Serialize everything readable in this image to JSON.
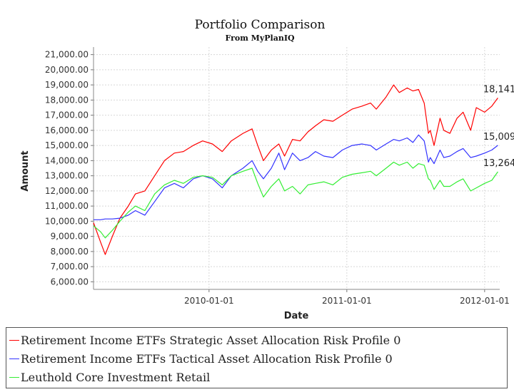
{
  "chart_data": {
    "type": "line",
    "title": "Portfolio Comparison",
    "subtitle": "From MyPlanIQ",
    "xlabel": "Date",
    "ylabel": "Amount",
    "xlim": [
      "2009-03-01",
      "2012-02-10"
    ],
    "ylim": [
      5500,
      21500
    ],
    "y_ticks": [
      6000,
      7000,
      8000,
      9000,
      10000,
      11000,
      12000,
      13000,
      14000,
      15000,
      16000,
      17000,
      18000,
      19000,
      20000,
      21000
    ],
    "y_tick_labels": [
      "6,000.00",
      "7,000.00",
      "8,000.00",
      "9,000.00",
      "10,000.00",
      "11,000.00",
      "12,000.00",
      "13,000.00",
      "14,000.00",
      "15,000.00",
      "16,000.00",
      "17,000.00",
      "18,000.00",
      "19,000.00",
      "20,000.00",
      "21,000.00"
    ],
    "x_ticks": [
      "2010-01-01",
      "2011-01-01",
      "2012-01-01"
    ],
    "x_tick_labels": [
      "2010-01-01",
      "2011-01-01",
      "2012-01-01"
    ],
    "grid": true,
    "legend_position": "bottom",
    "series": [
      {
        "name": "Retirement Income ETFs Strategic Asset Allocation Risk Profile 0",
        "color": "#ff0000",
        "end_label": "18,141",
        "x": [
          "2009-03-01",
          "2009-03-20",
          "2009-04-01",
          "2009-04-20",
          "2009-05-10",
          "2009-06-01",
          "2009-06-20",
          "2009-07-15",
          "2009-08-10",
          "2009-09-05",
          "2009-10-01",
          "2009-10-25",
          "2009-11-20",
          "2009-12-15",
          "2010-01-10",
          "2010-02-05",
          "2010-03-01",
          "2010-04-01",
          "2010-04-25",
          "2010-05-10",
          "2010-05-25",
          "2010-06-15",
          "2010-07-05",
          "2010-07-20",
          "2010-08-10",
          "2010-08-30",
          "2010-09-20",
          "2010-10-10",
          "2010-11-01",
          "2010-11-25",
          "2010-12-20",
          "2011-01-15",
          "2011-02-10",
          "2011-03-05",
          "2011-03-20",
          "2011-04-15",
          "2011-05-05",
          "2011-05-20",
          "2011-06-10",
          "2011-06-25",
          "2011-07-10",
          "2011-07-25",
          "2011-08-05",
          "2011-08-10",
          "2011-08-20",
          "2011-09-05",
          "2011-09-15",
          "2011-10-01",
          "2011-10-20",
          "2011-11-05",
          "2011-11-25",
          "2011-12-10",
          "2012-01-01",
          "2012-01-20",
          "2012-02-05"
        ],
        "values": [
          9900,
          8600,
          7800,
          9000,
          10200,
          11000,
          11800,
          12000,
          13000,
          14000,
          14500,
          14600,
          15000,
          15300,
          15100,
          14600,
          15300,
          15800,
          16100,
          15000,
          14000,
          14700,
          15100,
          14300,
          15400,
          15300,
          15900,
          16300,
          16700,
          16600,
          17000,
          17400,
          17600,
          17800,
          17400,
          18200,
          19000,
          18500,
          18800,
          18600,
          18700,
          17800,
          15800,
          16000,
          15000,
          16800,
          16000,
          15800,
          16800,
          17200,
          16000,
          17500,
          17200,
          17600,
          18141
        ]
      },
      {
        "name": "Retirement Income ETFs Tactical Asset Allocation Risk Profile 0",
        "color": "#3333ff",
        "end_label": "15,009",
        "x": [
          "2009-03-01",
          "2009-03-20",
          "2009-04-01",
          "2009-04-20",
          "2009-05-10",
          "2009-06-01",
          "2009-06-20",
          "2009-07-15",
          "2009-08-10",
          "2009-09-05",
          "2009-10-01",
          "2009-10-25",
          "2009-11-20",
          "2009-12-15",
          "2010-01-10",
          "2010-02-05",
          "2010-03-01",
          "2010-04-01",
          "2010-04-25",
          "2010-05-10",
          "2010-05-25",
          "2010-06-15",
          "2010-07-05",
          "2010-07-20",
          "2010-08-10",
          "2010-08-30",
          "2010-09-20",
          "2010-10-10",
          "2010-11-01",
          "2010-11-25",
          "2010-12-20",
          "2011-01-15",
          "2011-02-10",
          "2011-03-05",
          "2011-03-20",
          "2011-04-15",
          "2011-05-05",
          "2011-05-20",
          "2011-06-10",
          "2011-06-25",
          "2011-07-10",
          "2011-07-25",
          "2011-08-05",
          "2011-08-10",
          "2011-08-20",
          "2011-09-05",
          "2011-09-15",
          "2011-10-01",
          "2011-10-20",
          "2011-11-05",
          "2011-11-25",
          "2011-12-10",
          "2012-01-01",
          "2012-01-20",
          "2012-02-05"
        ],
        "values": [
          10100,
          10100,
          10150,
          10150,
          10200,
          10400,
          10700,
          10400,
          11300,
          12200,
          12500,
          12200,
          12800,
          13000,
          12800,
          12200,
          13000,
          13500,
          14000,
          13300,
          12800,
          13500,
          14500,
          13400,
          14500,
          14000,
          14200,
          14600,
          14300,
          14200,
          14700,
          15000,
          15100,
          15000,
          14700,
          15100,
          15400,
          15300,
          15500,
          15200,
          15700,
          15300,
          13900,
          14200,
          13800,
          14700,
          14200,
          14300,
          14600,
          14800,
          14200,
          14300,
          14500,
          14700,
          15009
        ]
      },
      {
        "name": "Leuthold Core Investment Retail",
        "color": "#33ee33",
        "end_label": "13,264",
        "x": [
          "2009-03-01",
          "2009-03-20",
          "2009-04-01",
          "2009-04-20",
          "2009-05-10",
          "2009-06-01",
          "2009-06-20",
          "2009-07-15",
          "2009-08-10",
          "2009-09-05",
          "2009-10-01",
          "2009-10-25",
          "2009-11-20",
          "2009-12-15",
          "2010-01-10",
          "2010-02-05",
          "2010-03-01",
          "2010-04-01",
          "2010-04-25",
          "2010-05-10",
          "2010-05-25",
          "2010-06-15",
          "2010-07-05",
          "2010-07-20",
          "2010-08-10",
          "2010-08-30",
          "2010-09-20",
          "2010-10-10",
          "2010-11-01",
          "2010-11-25",
          "2010-12-20",
          "2011-01-15",
          "2011-02-10",
          "2011-03-05",
          "2011-03-20",
          "2011-04-15",
          "2011-05-05",
          "2011-05-20",
          "2011-06-10",
          "2011-06-25",
          "2011-07-10",
          "2011-07-25",
          "2011-08-05",
          "2011-08-10",
          "2011-08-20",
          "2011-09-05",
          "2011-09-15",
          "2011-10-01",
          "2011-10-20",
          "2011-11-05",
          "2011-11-25",
          "2011-12-10",
          "2012-01-01",
          "2012-01-20",
          "2012-02-05"
        ],
        "values": [
          9700,
          9300,
          8900,
          9400,
          10000,
          10600,
          11000,
          10700,
          11800,
          12400,
          12700,
          12500,
          12900,
          13000,
          12900,
          12400,
          13000,
          13300,
          13500,
          12500,
          11600,
          12300,
          12800,
          12000,
          12300,
          11800,
          12400,
          12500,
          12600,
          12400,
          12900,
          13100,
          13200,
          13300,
          13000,
          13500,
          13900,
          13700,
          13900,
          13500,
          13800,
          13700,
          12800,
          12700,
          12100,
          12700,
          12300,
          12300,
          12600,
          12800,
          12000,
          12200,
          12500,
          12700,
          13264
        ]
      }
    ]
  }
}
